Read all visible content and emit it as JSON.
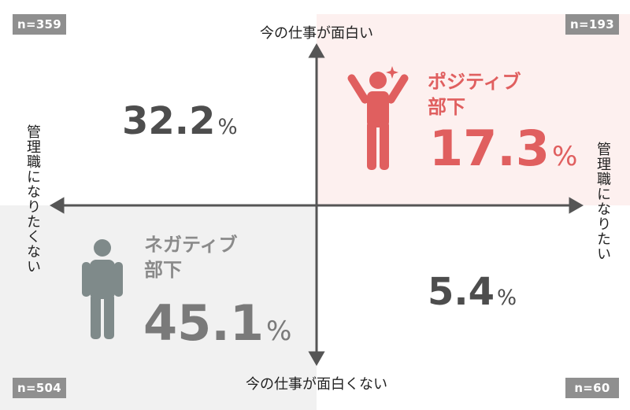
{
  "chart_data": {
    "type": "quadrant",
    "axes": {
      "top": "今の仕事が面白い",
      "bottom": "今の仕事が面白くない",
      "left": "管理職になりたくない",
      "right": "管理職になりたい"
    },
    "quadrants": [
      {
        "position": "top-left",
        "n": "n=359",
        "value": 32.2,
        "value_text": "32.2",
        "unit": "%",
        "label": ""
      },
      {
        "position": "top-right",
        "n": "n=193",
        "value": 17.3,
        "value_text": "17.3",
        "unit": "%",
        "label": "ポジティブ\n部下",
        "color": "#e05f5f",
        "background": "#fdf0ef"
      },
      {
        "position": "bottom-left",
        "n": "n=504",
        "value": 45.1,
        "value_text": "45.1",
        "unit": "%",
        "label": "ネガティブ\n部下",
        "color": "#8a8a8a",
        "background": "#f1f1f1"
      },
      {
        "position": "bottom-right",
        "n": "n=60",
        "value": 5.4,
        "value_text": "5.4",
        "unit": "%",
        "label": ""
      }
    ]
  },
  "colors": {
    "positive": "#e05f5f",
    "negative": "#8a8a8a",
    "badge": "#8f8f8f",
    "axis": "#555555"
  },
  "icons": {
    "positive": "person-cheering-icon",
    "negative": "person-standing-icon"
  }
}
